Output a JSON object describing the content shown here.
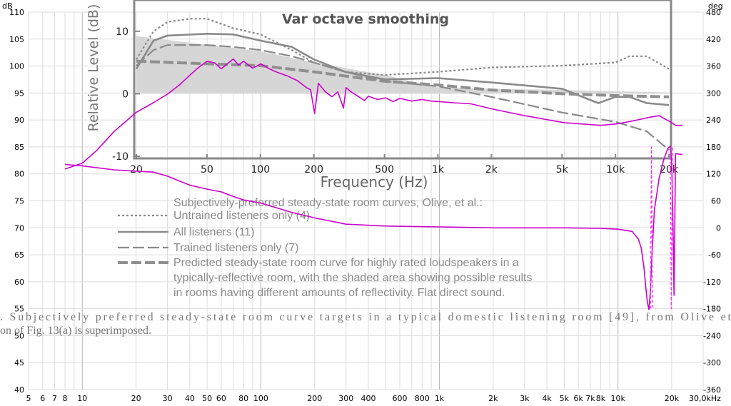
{
  "chart_data": {
    "type": "line",
    "title": "Var octave smoothing",
    "x_scale": "log",
    "xlim": [
      5,
      30000
    ],
    "x_ticks": [
      {
        "v": 5,
        "label": "5"
      },
      {
        "v": 6,
        "label": "6"
      },
      {
        "v": 7,
        "label": "7"
      },
      {
        "v": 8,
        "label": "8"
      },
      {
        "v": 10,
        "label": "10"
      },
      {
        "v": 20,
        "label": "20"
      },
      {
        "v": 30,
        "label": "30"
      },
      {
        "v": 40,
        "label": "40"
      },
      {
        "v": 50,
        "label": "50"
      },
      {
        "v": 60,
        "label": "60"
      },
      {
        "v": 80,
        "label": "80"
      },
      {
        "v": 100,
        "label": "100"
      },
      {
        "v": 200,
        "label": "200"
      },
      {
        "v": 300,
        "label": "300"
      },
      {
        "v": 400,
        "label": "400"
      },
      {
        "v": 600,
        "label": "600"
      },
      {
        "v": 800,
        "label": "800"
      },
      {
        "v": 1000,
        "label": "1k"
      },
      {
        "v": 2000,
        "label": "2k"
      },
      {
        "v": 3000,
        "label": "3k"
      },
      {
        "v": 4000,
        "label": "4k"
      },
      {
        "v": 5000,
        "label": "5k"
      },
      {
        "v": 6000,
        "label": "6k"
      },
      {
        "v": 7000,
        "label": "7k"
      },
      {
        "v": 8000,
        "label": "8k"
      },
      {
        "v": 10000,
        "label": "10k"
      },
      {
        "v": 20000,
        "label": "20k"
      },
      {
        "v": 30000,
        "label": "30,0kHz"
      }
    ],
    "y_left": {
      "unit": "dB",
      "min": 40,
      "max": 110,
      "ticks": [
        "110",
        "105",
        "100",
        "95",
        "90",
        "85",
        "80",
        "75",
        "70",
        "65",
        "60",
        "55",
        "50",
        "45",
        "40"
      ]
    },
    "y_right": {
      "unit": "deg",
      "min": -360,
      "max": 480,
      "ticks": [
        "480",
        "420",
        "360",
        "300",
        "240",
        "180",
        "120",
        "60",
        "0",
        "-60",
        "-120",
        "-180",
        "-240",
        "-300",
        "-360"
      ]
    },
    "grid": true,
    "series": [
      {
        "axis": "left",
        "color": "#cc00cc",
        "x": [
          8,
          10,
          12,
          15,
          20,
          25,
          30,
          35,
          40,
          45,
          50,
          55,
          60,
          70,
          75,
          80,
          90,
          100,
          110,
          120,
          140,
          160,
          180,
          190,
          200,
          210,
          230,
          250,
          270,
          290,
          300,
          320,
          350,
          380,
          400,
          450,
          500,
          550,
          600,
          700,
          800,
          900,
          1000,
          1200,
          1500,
          2000,
          3000,
          5000,
          8000,
          10000,
          12000,
          15000,
          17000,
          20000,
          21000,
          23000
        ],
        "y": [
          80.9,
          82.0,
          84.3,
          87.8,
          91.4,
          93.2,
          94.8,
          96.5,
          98.3,
          99.8,
          100.9,
          100.6,
          99.5,
          101.3,
          100.2,
          100.9,
          99.6,
          100.4,
          99.6,
          99.0,
          98.2,
          97.3,
          96.0,
          95.6,
          91.2,
          96.8,
          95.2,
          94.3,
          95.2,
          92.2,
          96.0,
          95.2,
          94.4,
          93.6,
          94.4,
          93.8,
          94.1,
          93.4,
          94.0,
          93.5,
          93.8,
          93.5,
          93.4,
          93.2,
          93.0,
          92.0,
          90.8,
          89.5,
          89.0,
          89.3,
          89.8,
          90.5,
          90.8,
          89.5,
          89.0,
          89.0
        ]
      },
      {
        "axis": "right",
        "color": "#cc00cc",
        "x": [
          8,
          10,
          15,
          20,
          25,
          30,
          40,
          50,
          60,
          70,
          80,
          100,
          150,
          200,
          300,
          500,
          1000,
          2000,
          5000,
          8000,
          10000,
          12000,
          13000,
          13500,
          14000,
          14300,
          14600,
          14900,
          15200,
          15500,
          16000,
          17000,
          18000,
          19000,
          19600,
          20000,
          20300,
          20600,
          21000,
          23000
        ],
        "y": [
          141,
          138,
          129,
          126,
          124,
          115,
          95,
          86,
          80,
          70,
          62,
          55,
          34,
          22,
          8,
          4,
          2,
          0,
          0,
          -1,
          -3,
          -8,
          -25,
          -45,
          -90,
          -130,
          -165,
          -182,
          -140,
          -60,
          40,
          110,
          150,
          176,
          182,
          140,
          20,
          -150,
          165,
          163
        ]
      },
      {
        "axis": "right",
        "color": "#ff33ff",
        "dashed": true,
        "x": [
          15200,
          15400,
          15600
        ],
        "y": [
          -180,
          180,
          -180
        ]
      },
      {
        "axis": "right",
        "color": "#ff33ff",
        "dashed": true,
        "x": [
          19600,
          19900,
          20200
        ],
        "y": [
          180,
          -180,
          180
        ]
      }
    ],
    "inset": {
      "ylabel": "Relative Level (dB)",
      "xlabel": "Frequency (Hz)",
      "ylim": [
        -10,
        15
      ],
      "xlim": [
        20,
        20000
      ],
      "y_ticks": [
        "10",
        "0",
        "-10"
      ],
      "x_ticks": [
        {
          "v": 20,
          "label": "20"
        },
        {
          "v": 50,
          "label": "50"
        },
        {
          "v": 100,
          "label": "100"
        },
        {
          "v": 200,
          "label": "200"
        },
        {
          "v": 500,
          "label": "500"
        },
        {
          "v": 1000,
          "label": "1k"
        },
        {
          "v": 2000,
          "label": "2k"
        },
        {
          "v": 5000,
          "label": "5k"
        },
        {
          "v": 10000,
          "label": "10k"
        },
        {
          "v": 20000,
          "label": "20k"
        }
      ],
      "shaded_band": {
        "x": [
          20,
          100,
          200,
          500,
          1000,
          2000,
          5000,
          10000,
          20000
        ],
        "upper": [
          9.2,
          6.8,
          5.0,
          3.0,
          1.0,
          0.8,
          0.6,
          0.4,
          0.2
        ],
        "lower": [
          0,
          0,
          0,
          0,
          0,
          0,
          0,
          0,
          0
        ]
      },
      "curves": [
        {
          "name": "untrained",
          "style": "dotted",
          "x": [
            20,
            25,
            30,
            40,
            50,
            70,
            100,
            150,
            200,
            300,
            500,
            1000,
            2000,
            5000,
            10000,
            12000,
            15000,
            20000
          ],
          "y": [
            5.5,
            10,
            11.5,
            12,
            12,
            10.5,
            9.5,
            7,
            5,
            3.5,
            3,
            3.5,
            4.2,
            4.5,
            5,
            6,
            6,
            4
          ]
        },
        {
          "name": "all",
          "style": "solid",
          "x": [
            20,
            25,
            30,
            50,
            70,
            100,
            150,
            200,
            300,
            500,
            1000,
            2000,
            5000,
            8000,
            10000,
            12000,
            15000,
            20000
          ],
          "y": [
            4,
            8.5,
            9.3,
            9.6,
            9.5,
            8.5,
            7.5,
            5.5,
            3.5,
            2.3,
            2.5,
            1.8,
            0.8,
            -1.5,
            -0.5,
            -0.5,
            -1.5,
            -1.8
          ]
        },
        {
          "name": "trained",
          "style": "long-dash",
          "x": [
            20,
            25,
            30,
            50,
            70,
            100,
            150,
            200,
            300,
            500,
            1000,
            2000,
            5000,
            10000,
            15000,
            20000
          ],
          "y": [
            4.5,
            7,
            7.8,
            7.8,
            7.5,
            7,
            6,
            5,
            3.5,
            2,
            1.2,
            -0.5,
            -3,
            -4.5,
            -6,
            -9
          ]
        },
        {
          "name": "predicted",
          "style": "heavy-dash",
          "x": [
            20,
            50,
            100,
            200,
            500,
            1000,
            2000,
            5000,
            10000,
            20000
          ],
          "y": [
            5.2,
            4.8,
            4.5,
            3.5,
            2,
            1.4,
            0.6,
            0,
            -0.3,
            -0.5
          ]
        }
      ],
      "legend": {
        "heading": "Subjectively-preferred steady-state room curves, Olive, et al.:",
        "items": [
          "Untrained listeners only (4)",
          "All listeners (11)",
          "Trained listeners only (7)"
        ],
        "predicted_lines": [
          "Predicted steady-state room curve for highly rated loudspeakers in a",
          "typically-reflective room, with the shaded area showing possible results",
          "in rooms having different amounts of reflectivity.  Flat direct sound."
        ]
      },
      "caption": [
        ".   Subjectively preferred steady-state room curve targets in a typical domestic listening room [49], from Olive et",
        "on of Fig. 13(a) is superimposed."
      ]
    }
  }
}
